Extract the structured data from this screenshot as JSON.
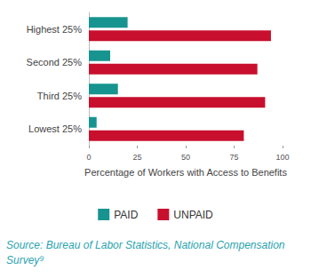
{
  "chart_data": {
    "type": "bar",
    "orientation": "horizontal",
    "categories": [
      "Highest 25%",
      "Second 25%",
      "Third 25%",
      "Lowest 25%"
    ],
    "series": [
      {
        "name": "PAID",
        "color": "#17948f",
        "values": [
          20,
          11,
          15,
          4
        ]
      },
      {
        "name": "UNPAID",
        "color": "#c8102e",
        "values": [
          94,
          87,
          91,
          80
        ]
      }
    ],
    "x_label": "Percentage of Workers with Access to Benefits",
    "xlim": [
      0,
      100
    ],
    "xticks": [
      0,
      25,
      50,
      75,
      100
    ],
    "grid": false,
    "legend": "bottom",
    "annotations": [
      "Source: Bureau of Labor Statistics, National Compensation Survey⁹"
    ]
  }
}
